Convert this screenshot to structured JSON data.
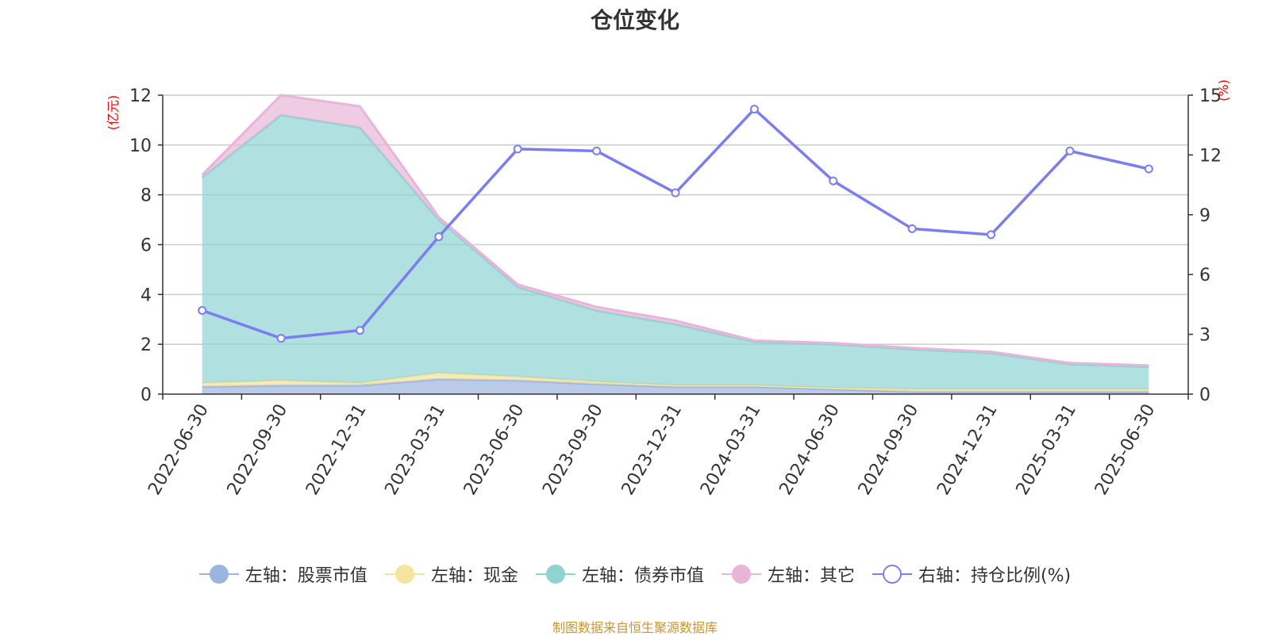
{
  "title": "仓位变化",
  "source": "制图数据来自恒生聚源数据库",
  "chart_data": {
    "type": "area",
    "title": "仓位变化",
    "categories": [
      "2022-06-30",
      "2022-09-30",
      "2022-12-31",
      "2023-03-31",
      "2023-06-30",
      "2023-09-30",
      "2023-12-31",
      "2024-03-31",
      "2024-06-30",
      "2024-09-30",
      "2024-12-31",
      "2025-03-31",
      "2025-06-30"
    ],
    "left_axis": {
      "label": "(亿元)",
      "ylim": [
        0,
        12
      ],
      "ticks": [
        "0",
        "2",
        "4",
        "6",
        "8",
        "10",
        "12"
      ]
    },
    "right_axis": {
      "label": "(%)",
      "ylim": [
        0,
        15
      ],
      "ticks": [
        "0",
        "3",
        "6",
        "9",
        "12",
        "15"
      ]
    },
    "stacked_series": [
      {
        "name": "左轴：股票市值",
        "color": "#9bb5e0",
        "values": [
          0.3,
          0.35,
          0.35,
          0.6,
          0.55,
          0.4,
          0.3,
          0.3,
          0.2,
          0.1,
          0.1,
          0.1,
          0.1
        ]
      },
      {
        "name": "左轴：现金",
        "color": "#f5e39e",
        "values": [
          0.15,
          0.2,
          0.1,
          0.25,
          0.15,
          0.1,
          0.05,
          0.05,
          0.05,
          0.1,
          0.1,
          0.1,
          0.1
        ]
      },
      {
        "name": "左轴：债券市值",
        "color": "#8fd3d3",
        "values": [
          8.25,
          10.65,
          10.25,
          6.15,
          3.6,
          2.85,
          2.45,
          1.75,
          1.75,
          1.6,
          1.45,
          1.0,
          0.9
        ]
      },
      {
        "name": "左轴：其它",
        "color": "#e8b5d9",
        "values": [
          0.1,
          0.8,
          0.85,
          0.1,
          0.1,
          0.15,
          0.15,
          0.05,
          0.05,
          0.05,
          0.05,
          0.05,
          0.05
        ]
      }
    ],
    "line_series": {
      "name": "右轴：持仓比例(%)",
      "color": "#7a7ef0",
      "axis": "right",
      "values": [
        4.2,
        2.8,
        3.2,
        7.9,
        12.3,
        12.2,
        10.1,
        14.3,
        10.7,
        8.3,
        8.0,
        12.2,
        11.3
      ]
    },
    "grid": true,
    "legend_position": "bottom"
  }
}
